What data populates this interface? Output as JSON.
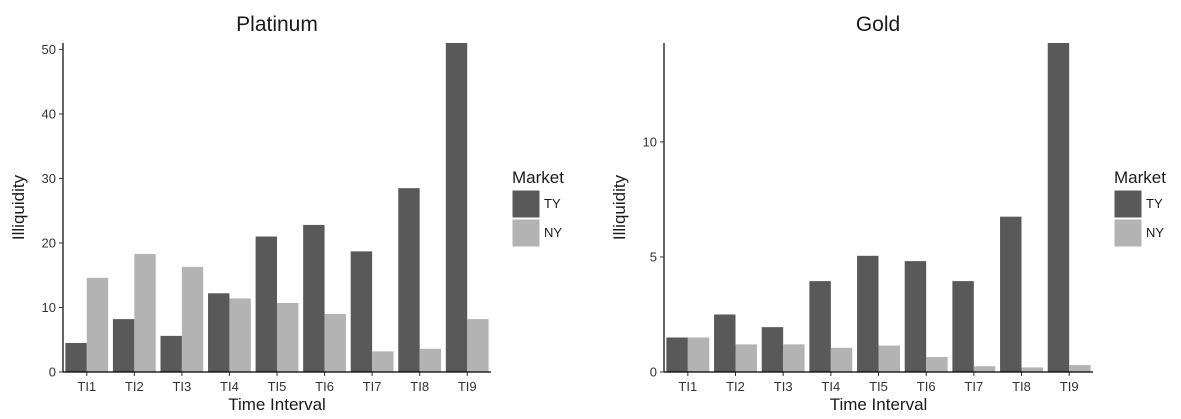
{
  "chart_data": [
    {
      "type": "bar",
      "title": "Platinum",
      "xlabel": "Time Interval",
      "ylabel": "Illiquidity",
      "categories": [
        "TI1",
        "TI2",
        "TI3",
        "TI4",
        "TI5",
        "TI6",
        "TI7",
        "TI8",
        "TI9"
      ],
      "yticks": [
        0,
        10,
        20,
        30,
        40,
        50
      ],
      "ylim": [
        0,
        51
      ],
      "grid": false,
      "legend": {
        "title": "Market",
        "position": "right"
      },
      "series": [
        {
          "name": "TY",
          "color": "#595959",
          "values": [
            4.5,
            8.2,
            5.6,
            12.2,
            21.0,
            22.8,
            18.7,
            28.5,
            51.0
          ]
        },
        {
          "name": "NY",
          "color": "#b3b3b3",
          "values": [
            14.6,
            18.3,
            16.3,
            11.4,
            10.7,
            9.0,
            3.2,
            3.6,
            8.2
          ]
        }
      ]
    },
    {
      "type": "bar",
      "title": "Gold",
      "xlabel": "Time Interval",
      "ylabel": "Illiquidity",
      "categories": [
        "TI1",
        "TI2",
        "TI3",
        "TI4",
        "TI5",
        "TI6",
        "TI7",
        "TI8",
        "TI9"
      ],
      "yticks": [
        0,
        5,
        10
      ],
      "ylim": [
        0,
        14.3
      ],
      "grid": false,
      "legend": {
        "title": "Market",
        "position": "right"
      },
      "series": [
        {
          "name": "TY",
          "color": "#595959",
          "values": [
            1.5,
            2.5,
            1.95,
            3.95,
            5.05,
            4.82,
            3.95,
            6.75,
            14.3
          ]
        },
        {
          "name": "NY",
          "color": "#b3b3b3",
          "values": [
            1.5,
            1.2,
            1.2,
            1.05,
            1.15,
            0.65,
            0.25,
            0.2,
            0.3
          ]
        }
      ]
    }
  ]
}
